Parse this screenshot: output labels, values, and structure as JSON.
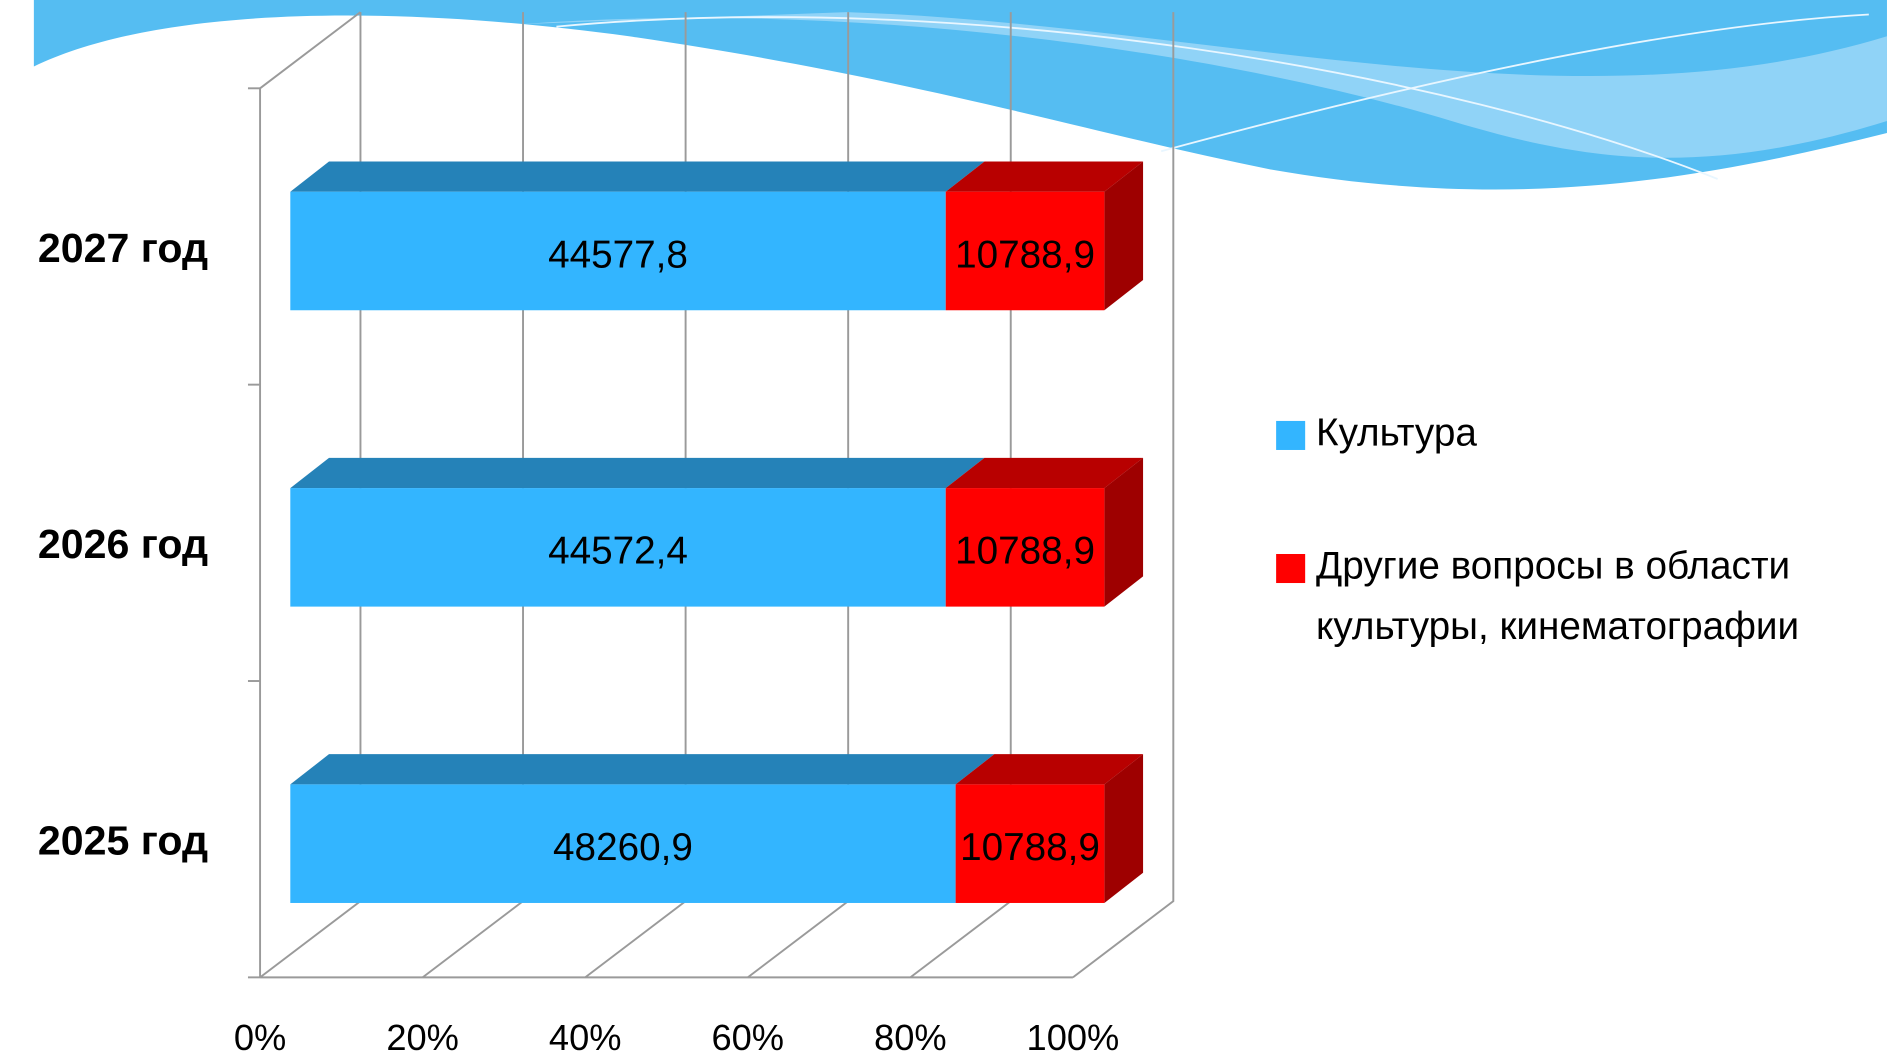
{
  "chart_data": {
    "type": "bar",
    "orientation": "horizontal",
    "stacking": "percent",
    "three_d": true,
    "categories": [
      "2025 год",
      "2026 год",
      "2027 год"
    ],
    "series": [
      {
        "name": "Культура",
        "color": "#33b5ff",
        "values": [
          48260.9,
          44572.4,
          44577.8
        ],
        "value_labels": [
          "48260,9",
          "44572,4",
          "44577,8"
        ]
      },
      {
        "name": "Другие вопросы в области культуры, кинематографии",
        "color": "#ff0000",
        "values": [
          10788.9,
          10788.9,
          10788.9
        ],
        "value_labels": [
          "10788,9",
          "10788,9",
          "10788,9"
        ]
      }
    ],
    "xlim": [
      0,
      100
    ],
    "xticks": [
      {
        "value": 0,
        "label": "0%"
      },
      {
        "value": 20,
        "label": "20%"
      },
      {
        "value": 40,
        "label": "40%"
      },
      {
        "value": 60,
        "label": "60%"
      },
      {
        "value": 80,
        "label": "80%"
      },
      {
        "value": 100,
        "label": "100%"
      }
    ],
    "grid": true,
    "legend": "right"
  }
}
